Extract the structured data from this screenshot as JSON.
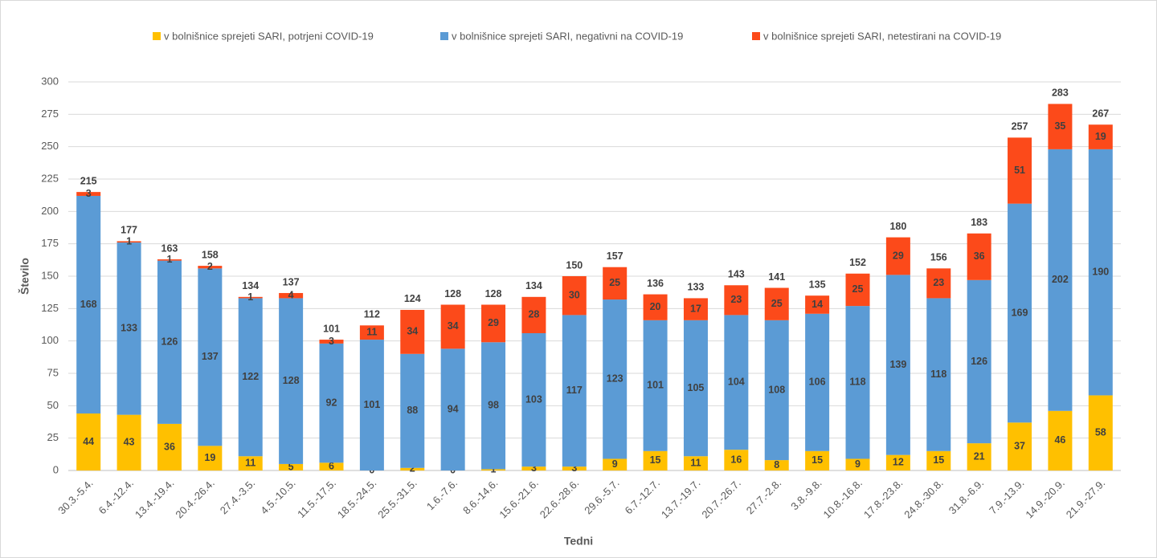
{
  "chart_data": {
    "type": "stacked_bar",
    "x_label": "Tedni",
    "y_label": "Število",
    "categories": [
      "30.3.-5.4.",
      "6.4.-12.4.",
      "13.4.-19.4.",
      "20.4.-26.4.",
      "27.4.-3.5.",
      "4.5.-10.5.",
      "11.5.-17.5.",
      "18.5.-24.5.",
      "25.5.-31.5.",
      "1.6.-7.6.",
      "8.6.-14.6.",
      "15.6.-21.6.",
      "22.6.-28.6.",
      "29.6.-5.7.",
      "6.7.-12.7.",
      "13.7.-19.7.",
      "20.7.-26.7.",
      "27.7.-2.8.",
      "3.8.-9.8.",
      "10.8.-16.8.",
      "17.8.-23.8.",
      "24.8.-30.8.",
      "31.8.-6.9.",
      "7.9.-13.9.",
      "14.9.-20.9.",
      "21.9.-27.9."
    ],
    "series": [
      {
        "name": "v bolnišnice sprejeti SARI, potrjeni COVID-19",
        "color": "#ffc000",
        "values": [
          44,
          43,
          36,
          19,
          11,
          5,
          6,
          0,
          2,
          0,
          1,
          3,
          3,
          9,
          15,
          11,
          16,
          8,
          15,
          9,
          12,
          15,
          21,
          37,
          46,
          58
        ]
      },
      {
        "name": "v bolnišnice sprejeti SARI, negativni na COVID-19",
        "color": "#5b9bd5",
        "values": [
          168,
          133,
          126,
          137,
          122,
          128,
          92,
          101,
          88,
          94,
          98,
          103,
          117,
          123,
          101,
          105,
          104,
          108,
          106,
          118,
          139,
          118,
          126,
          169,
          202,
          190
        ]
      },
      {
        "name": "v bolnišnice sprejeti SARI, netestirani na COVID-19",
        "color": "#fc4a1a",
        "values": [
          3,
          1,
          1,
          2,
          1,
          4,
          3,
          11,
          34,
          34,
          29,
          28,
          30,
          25,
          20,
          17,
          23,
          25,
          14,
          25,
          29,
          23,
          36,
          51,
          35,
          19
        ]
      }
    ],
    "totals": [
      215,
      177,
      163,
      158,
      134,
      137,
      101,
      112,
      124,
      128,
      128,
      134,
      150,
      157,
      136,
      133,
      143,
      141,
      135,
      152,
      180,
      156,
      183,
      257,
      283,
      267
    ],
    "ylim": [
      0,
      300
    ],
    "yticks": [
      0,
      25,
      50,
      75,
      100,
      125,
      150,
      175,
      200,
      225,
      250,
      275,
      300
    ],
    "grid": true,
    "legend": "top"
  }
}
